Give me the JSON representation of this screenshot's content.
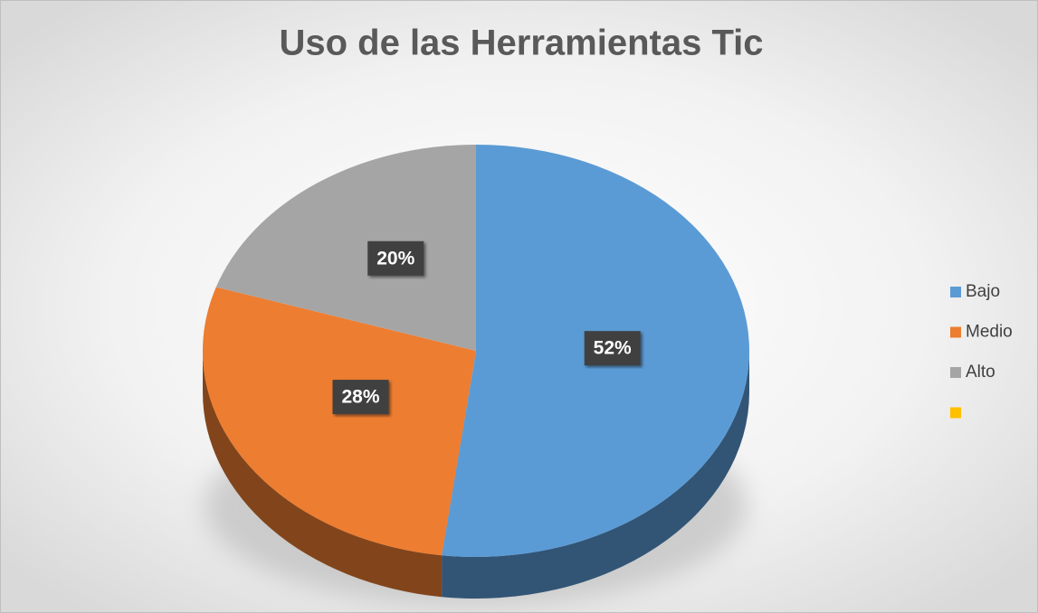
{
  "chart_data": {
    "type": "pie",
    "title": "Uso de las Herramientas Tic",
    "categories": [
      "Bajo",
      "Medio",
      "Alto",
      null
    ],
    "values": [
      52,
      28,
      20,
      0
    ],
    "value_labels": [
      "52%",
      "28%",
      "20%",
      null
    ],
    "colors": [
      "#5b9bd5",
      "#ed7d31",
      "#a5a5a5",
      "#ffc000"
    ],
    "legend": "right"
  }
}
